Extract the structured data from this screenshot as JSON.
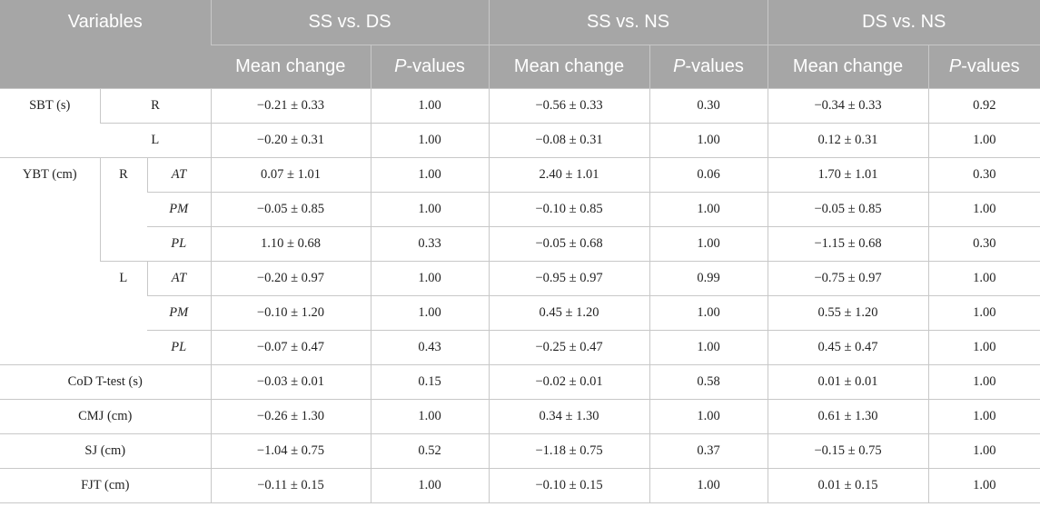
{
  "header": {
    "variables": "Variables",
    "groups": [
      "SS vs. DS",
      "SS vs. NS",
      "DS vs. NS"
    ],
    "mean_change": "Mean change",
    "p_prefix": "P",
    "p_suffix": "-values"
  },
  "labels": {
    "sbt": "SBT (s)",
    "ybt": "YBT (cm)",
    "right": "R",
    "left": "L",
    "at": "AT",
    "pm": "PM",
    "pl": "PL",
    "cod": "CoD T-test (s)",
    "cmj": "CMJ (cm)",
    "sj": "SJ (cm)",
    "fjt": "FJT (cm)"
  },
  "rows": [
    {
      "cells": [
        "−0.21 ± 0.33",
        "1.00",
        "−0.56 ± 0.33",
        "0.30",
        "−0.34 ± 0.33",
        "0.92"
      ]
    },
    {
      "cells": [
        "−0.20 ± 0.31",
        "1.00",
        "−0.08 ± 0.31",
        "1.00",
        "0.12 ± 0.31",
        "1.00"
      ]
    },
    {
      "cells": [
        "0.07 ± 1.01",
        "1.00",
        "2.40 ± 1.01",
        "0.06",
        "1.70 ± 1.01",
        "0.30"
      ]
    },
    {
      "cells": [
        "−0.05 ± 0.85",
        "1.00",
        "−0.10 ± 0.85",
        "1.00",
        "−0.05 ± 0.85",
        "1.00"
      ]
    },
    {
      "cells": [
        "1.10 ± 0.68",
        "0.33",
        "−0.05 ± 0.68",
        "1.00",
        "−1.15 ± 0.68",
        "0.30"
      ]
    },
    {
      "cells": [
        "−0.20 ± 0.97",
        "1.00",
        "−0.95 ± 0.97",
        "0.99",
        "−0.75 ± 0.97",
        "1.00"
      ]
    },
    {
      "cells": [
        "−0.10 ± 1.20",
        "1.00",
        "0.45 ± 1.20",
        "1.00",
        "0.55 ± 1.20",
        "1.00"
      ]
    },
    {
      "cells": [
        "−0.07 ± 0.47",
        "0.43",
        "−0.25 ± 0.47",
        "1.00",
        "0.45 ± 0.47",
        "1.00"
      ]
    },
    {
      "cells": [
        "−0.03 ± 0.01",
        "0.15",
        "−0.02 ± 0.01",
        "0.58",
        "0.01 ± 0.01",
        "1.00"
      ]
    },
    {
      "cells": [
        "−0.26 ± 1.30",
        "1.00",
        "0.34 ± 1.30",
        "1.00",
        "0.61 ± 1.30",
        "1.00"
      ]
    },
    {
      "cells": [
        "−1.04 ± 0.75",
        "0.52",
        "−1.18 ± 0.75",
        "0.37",
        "−0.15 ± 0.75",
        "1.00"
      ]
    },
    {
      "cells": [
        "−0.11 ± 0.15",
        "1.00",
        "−0.10 ± 0.15",
        "1.00",
        "0.01 ± 0.15",
        "1.00"
      ]
    }
  ]
}
